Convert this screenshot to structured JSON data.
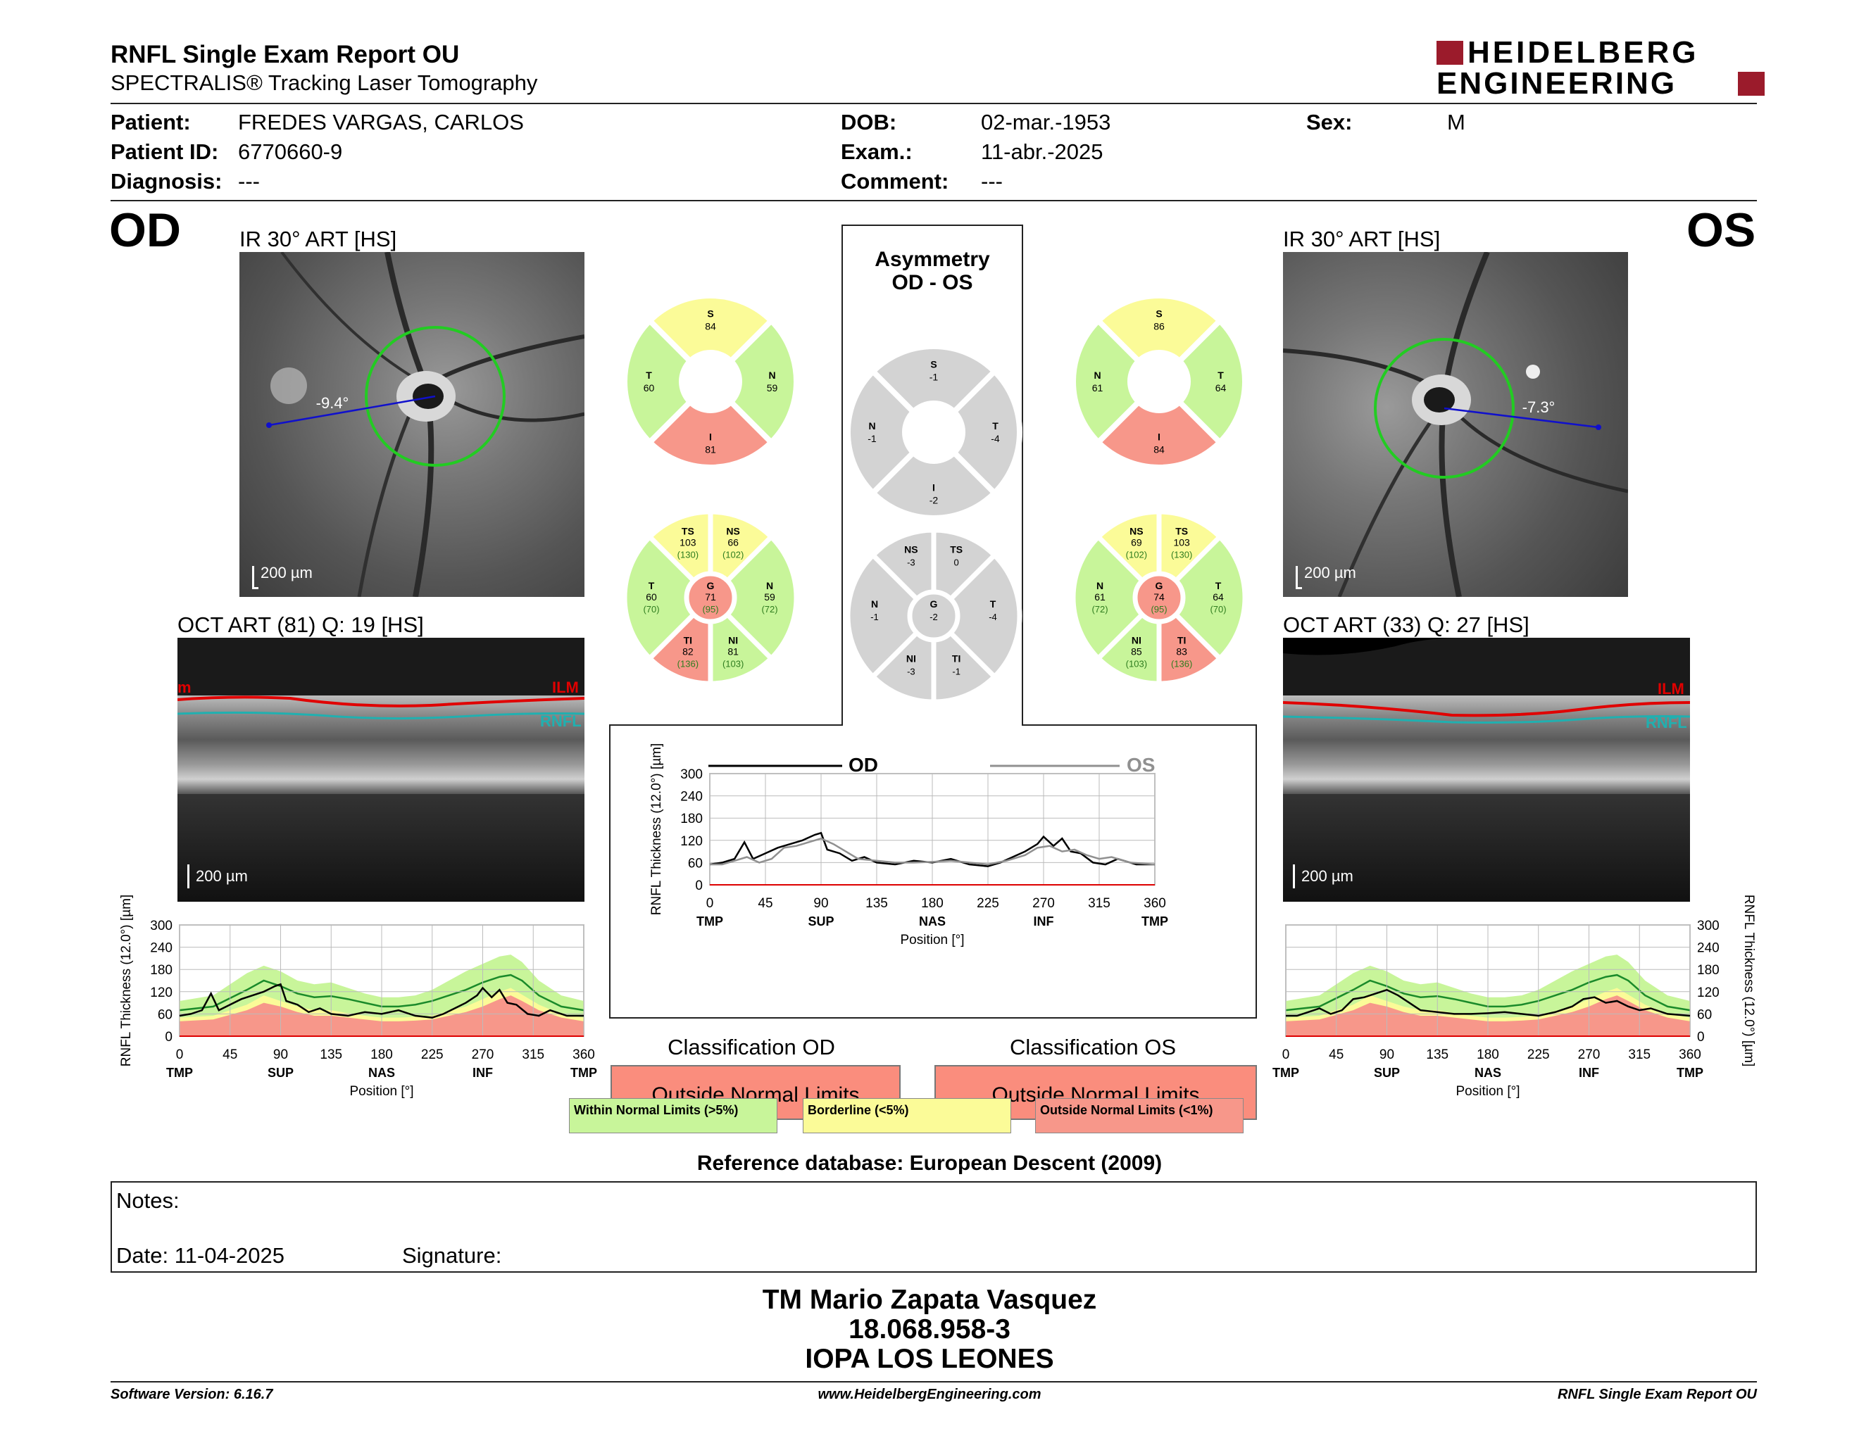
{
  "header": {
    "report_title": "RNFL Single Exam Report OU",
    "subtitle": "SPECTRALIS® Tracking Laser Tomography",
    "logo_line1": "HEIDELBERG",
    "logo_line2": "ENGINEERING",
    "brand_color": "#9b1b2b"
  },
  "patient": {
    "patient_label": "Patient:",
    "patient_value": "FREDES VARGAS, CARLOS",
    "id_label": "Patient ID:",
    "id_value": "6770660-9",
    "diagnosis_label": "Diagnosis:",
    "diagnosis_value": "---",
    "dob_label": "DOB:",
    "dob_value": "02-mar.-1953",
    "exam_label": "Exam.:",
    "exam_value": "11-abr.-2025",
    "comment_label": "Comment:",
    "comment_value": "---",
    "sex_label": "Sex:",
    "sex_value": "M"
  },
  "od": {
    "eye_label": "OD",
    "ir_title": "IR 30° ART [HS]",
    "angle": "-9.4°",
    "scale": "200 µm",
    "oct_title": "OCT ART (81) Q: 19 [HS]",
    "oct_scale": "200 µm",
    "ilm_label": "ILM",
    "rnfl_label": "RNFL",
    "ilm_cut": "m",
    "classification_title": "Classification OD",
    "classification_value": "Outside Normal Limits",
    "sectors4": {
      "S": "84",
      "T": "60",
      "N": "59",
      "I": "81"
    },
    "sectors6": {
      "TS": {
        "v": "103",
        "n": "(130)"
      },
      "NS": {
        "v": "66",
        "n": "(102)"
      },
      "T": {
        "v": "60",
        "n": "(70)"
      },
      "G": {
        "v": "71",
        "n": "(95)"
      },
      "N": {
        "v": "59",
        "n": "(72)"
      },
      "TI": {
        "v": "82",
        "n": "(136)"
      },
      "NI": {
        "v": "81",
        "n": "(103)"
      }
    }
  },
  "os": {
    "eye_label": "OS",
    "ir_title": "IR 30° ART [HS]",
    "angle": "-7.3°",
    "scale": "200 µm",
    "oct_title": "OCT ART (33) Q: 27 [HS]",
    "oct_scale": "200 µm",
    "ilm_label": "ILM",
    "rnfl_label": "RNFL",
    "classification_title": "Classification OS",
    "classification_value": "Outside Normal Limits",
    "sectors4": {
      "S": "86",
      "N": "61",
      "T": "64",
      "I": "84"
    },
    "sectors6": {
      "NS": {
        "v": "69",
        "n": "(102)"
      },
      "TS": {
        "v": "103",
        "n": "(130)"
      },
      "N": {
        "v": "61",
        "n": "(72)"
      },
      "G": {
        "v": "74",
        "n": "(95)"
      },
      "T": {
        "v": "64",
        "n": "(70)"
      },
      "NI": {
        "v": "85",
        "n": "(103)"
      },
      "TI": {
        "v": "83",
        "n": "(136)"
      }
    }
  },
  "asymmetry": {
    "title_line1": "Asymmetry",
    "title_line2": "OD - OS",
    "sectors4": {
      "S": "-1",
      "N": "-1",
      "T": "-4",
      "I": "-2"
    },
    "sectors6": {
      "NS": "-3",
      "TS": "0",
      "N": "-1",
      "G": "-2",
      "T": "-4",
      "NI": "-3",
      "TI": "-1"
    }
  },
  "sector_keys": {
    "S": "S",
    "I": "I",
    "N": "N",
    "T": "T",
    "TS": "TS",
    "NS": "NS",
    "TI": "TI",
    "NI": "NI",
    "G": "G"
  },
  "colors": {
    "within": "#c8f59a",
    "borderline": "#fbfb98",
    "outside": "#f7978a",
    "gray": "#d3d3d3",
    "ring_green": "#22cc22",
    "scan_blue": "#1010cc",
    "od_line": "#000000",
    "os_line": "#909090",
    "mean_line": "#1a8a2a"
  },
  "sector_colors": {
    "od4": {
      "S": "borderline",
      "T": "within",
      "N": "within",
      "I": "outside"
    },
    "os4": {
      "S": "borderline",
      "N": "within",
      "T": "within",
      "I": "outside"
    },
    "od6": {
      "TS": "borderline",
      "NS": "borderline",
      "T": "within",
      "G": "outside",
      "N": "within",
      "TI": "outside",
      "NI": "within"
    },
    "os6": {
      "NS": "borderline",
      "TS": "borderline",
      "N": "within",
      "G": "outside",
      "T": "within",
      "NI": "within",
      "TI": "outside"
    }
  },
  "legend": {
    "within": "Within Normal Limits (>5%)",
    "borderline": "Borderline (<5%)",
    "outside": "Outside Normal Limits (<1%)"
  },
  "reference": "Reference database: European Descent (2009)",
  "notes": {
    "notes_label": "Notes:",
    "date_label": "Date: 11-04-2025",
    "signature_label": "Signature:"
  },
  "examiner": {
    "name": "TM Mario Zapata Vasquez",
    "rut": "18.068.958-3",
    "clinic": "IOPA LOS LEONES"
  },
  "footer": {
    "software": "Software Version: 6.16.7",
    "website": "www.HeidelbergEngineering.com",
    "report": "RNFL Single Exam Report OU"
  },
  "chart_data": [
    {
      "type": "line",
      "panel": "Asymmetry OD-OS profile",
      "ylabel": "RNFL Thickness (12.0°) [µm]",
      "xlabel": "Position [°]",
      "ylim": [
        0,
        300
      ],
      "yticks": [
        "0",
        "60",
        "120",
        "180",
        "240",
        "300"
      ],
      "xlim": [
        0,
        360
      ],
      "xticks": [
        "0",
        "45",
        "90",
        "135",
        "180",
        "225",
        "270",
        "315",
        "360"
      ],
      "xregions": [
        {
          "at": 0,
          "label": "TMP"
        },
        {
          "at": 90,
          "label": "SUP"
        },
        {
          "at": 180,
          "label": "NAS"
        },
        {
          "at": 270,
          "label": "INF"
        },
        {
          "at": 360,
          "label": "TMP"
        }
      ],
      "grid": true,
      "legend_position": "top",
      "series": [
        {
          "name": "OD",
          "x": [
            0,
            10,
            20,
            28,
            35,
            45,
            55,
            65,
            75,
            85,
            90,
            95,
            105,
            115,
            125,
            135,
            150,
            165,
            180,
            195,
            210,
            225,
            235,
            245,
            255,
            265,
            270,
            278,
            285,
            292,
            300,
            310,
            320,
            330,
            345,
            360
          ],
          "y": [
            55,
            60,
            70,
            115,
            70,
            85,
            100,
            110,
            120,
            135,
            140,
            95,
            85,
            65,
            75,
            60,
            55,
            65,
            60,
            70,
            55,
            50,
            60,
            75,
            90,
            110,
            130,
            105,
            125,
            90,
            85,
            60,
            55,
            70,
            55,
            55
          ]
        },
        {
          "name": "OS",
          "x": [
            0,
            10,
            20,
            30,
            40,
            50,
            60,
            70,
            80,
            90,
            100,
            110,
            120,
            135,
            150,
            165,
            180,
            195,
            210,
            225,
            240,
            255,
            265,
            275,
            285,
            295,
            305,
            315,
            325,
            340,
            360
          ],
          "y": [
            55,
            55,
            65,
            75,
            60,
            70,
            100,
            105,
            115,
            125,
            110,
            90,
            70,
            65,
            60,
            60,
            62,
            65,
            60,
            55,
            65,
            80,
            100,
            105,
            90,
            95,
            80,
            70,
            75,
            60,
            55
          ]
        }
      ]
    },
    {
      "type": "line",
      "panel": "OD thickness profile",
      "ylabel": "RNFL Thickness (12.0°) [µm]",
      "xlabel": "Position [°]",
      "ylim": [
        0,
        300
      ],
      "yticks": [
        "0",
        "60",
        "120",
        "180",
        "240",
        "300"
      ],
      "xlim": [
        0,
        360
      ],
      "xticks": [
        "0",
        "45",
        "90",
        "135",
        "180",
        "225",
        "270",
        "315",
        "360"
      ],
      "xregions": [
        {
          "at": 0,
          "label": "TMP"
        },
        {
          "at": 90,
          "label": "SUP"
        },
        {
          "at": 180,
          "label": "NAS"
        },
        {
          "at": 270,
          "label": "INF"
        },
        {
          "at": 360,
          "label": "TMP"
        }
      ],
      "grid": true,
      "bands": {
        "x": [
          0,
          30,
          60,
          75,
          90,
          105,
          120,
          135,
          150,
          165,
          180,
          195,
          210,
          225,
          240,
          255,
          270,
          285,
          295,
          305,
          320,
          340,
          360
        ],
        "p1": [
          40,
          45,
          70,
          90,
          80,
          65,
          55,
          55,
          50,
          45,
          40,
          40,
          42,
          45,
          55,
          65,
          80,
          100,
          110,
          95,
          70,
          50,
          40
        ],
        "p5": [
          50,
          55,
          85,
          110,
          95,
          80,
          70,
          70,
          62,
          55,
          50,
          50,
          52,
          55,
          68,
          80,
          100,
          120,
          130,
          112,
          85,
          60,
          50
        ],
        "p95": [
          95,
          110,
          170,
          190,
          175,
          150,
          140,
          145,
          130,
          115,
          105,
          105,
          110,
          125,
          150,
          175,
          195,
          215,
          220,
          200,
          150,
          110,
          95
        ],
        "mean": [
          70,
          80,
          125,
          150,
          135,
          115,
          105,
          108,
          100,
          90,
          80,
          80,
          85,
          95,
          110,
          125,
          145,
          160,
          165,
          150,
          110,
          80,
          70
        ]
      },
      "series": [
        {
          "name": "OD",
          "x": [
            0,
            10,
            20,
            28,
            35,
            45,
            55,
            65,
            75,
            85,
            90,
            95,
            105,
            115,
            125,
            135,
            150,
            165,
            180,
            195,
            210,
            225,
            235,
            245,
            255,
            265,
            270,
            278,
            285,
            292,
            300,
            310,
            320,
            330,
            345,
            360
          ],
          "y": [
            55,
            60,
            70,
            115,
            70,
            85,
            100,
            110,
            120,
            135,
            140,
            95,
            85,
            65,
            75,
            60,
            55,
            65,
            60,
            70,
            55,
            50,
            60,
            75,
            90,
            110,
            130,
            105,
            125,
            90,
            85,
            60,
            55,
            70,
            55,
            55
          ]
        }
      ]
    },
    {
      "type": "line",
      "panel": "OS thickness profile",
      "ylabel": "RNFL Thickness (12.0°) [µm]",
      "xlabel": "Position [°]",
      "ylim": [
        0,
        300
      ],
      "yticks": [
        "0",
        "60",
        "120",
        "180",
        "240",
        "300"
      ],
      "xlim": [
        0,
        360
      ],
      "xticks": [
        "0",
        "45",
        "90",
        "135",
        "180",
        "225",
        "270",
        "315",
        "360"
      ],
      "xregions": [
        {
          "at": 0,
          "label": "TMP"
        },
        {
          "at": 90,
          "label": "SUP"
        },
        {
          "at": 180,
          "label": "NAS"
        },
        {
          "at": 270,
          "label": "INF"
        },
        {
          "at": 360,
          "label": "TMP"
        }
      ],
      "grid": true,
      "bands": {
        "x": [
          0,
          30,
          60,
          75,
          90,
          105,
          120,
          135,
          150,
          165,
          180,
          195,
          210,
          225,
          240,
          255,
          270,
          285,
          295,
          305,
          320,
          340,
          360
        ],
        "p1": [
          40,
          45,
          70,
          90,
          80,
          65,
          55,
          55,
          50,
          45,
          40,
          40,
          42,
          45,
          55,
          65,
          80,
          100,
          110,
          95,
          70,
          50,
          40
        ],
        "p5": [
          50,
          55,
          85,
          110,
          95,
          80,
          70,
          70,
          62,
          55,
          50,
          50,
          52,
          55,
          68,
          80,
          100,
          120,
          130,
          112,
          85,
          60,
          50
        ],
        "p95": [
          95,
          110,
          170,
          190,
          175,
          150,
          140,
          145,
          130,
          115,
          105,
          105,
          110,
          125,
          150,
          175,
          195,
          215,
          220,
          200,
          150,
          110,
          95
        ],
        "mean": [
          70,
          80,
          125,
          150,
          135,
          115,
          105,
          108,
          100,
          90,
          80,
          80,
          85,
          95,
          110,
          125,
          145,
          160,
          165,
          150,
          110,
          80,
          70
        ]
      },
      "series": [
        {
          "name": "OS",
          "x": [
            0,
            10,
            20,
            30,
            40,
            50,
            60,
            70,
            80,
            90,
            100,
            110,
            120,
            135,
            150,
            165,
            180,
            195,
            210,
            225,
            240,
            255,
            265,
            275,
            285,
            295,
            305,
            315,
            325,
            340,
            360
          ],
          "y": [
            55,
            55,
            65,
            75,
            60,
            70,
            100,
            105,
            115,
            125,
            110,
            90,
            70,
            65,
            60,
            60,
            62,
            65,
            60,
            55,
            65,
            80,
            100,
            105,
            90,
            95,
            80,
            70,
            75,
            60,
            55
          ]
        }
      ]
    }
  ]
}
